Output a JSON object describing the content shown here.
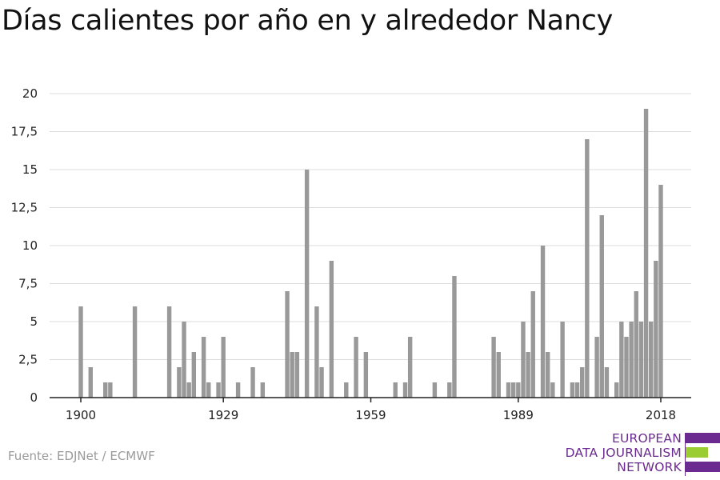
{
  "title": "Días calientes por año en y alrededor Nancy",
  "source": "Fuente: EDJNet / ECMWF",
  "logo": {
    "lines": [
      "EUROPEAN",
      "DATA JOURNALISM",
      "NETWORK"
    ],
    "colors": {
      "purple": "#6b2a8f",
      "green": "#9acd32"
    }
  },
  "colors": {
    "bar": "#999999",
    "grid": "#dddddd",
    "axis": "#222222",
    "text": "#222222"
  },
  "chart_data": {
    "type": "bar",
    "title": "Días calientes por año en y alrededor Nancy",
    "xlabel": "",
    "ylabel": "",
    "ylim": [
      0,
      20
    ],
    "grid": true,
    "y_ticks": [
      0,
      2.5,
      5,
      7.5,
      10,
      12.5,
      15,
      17.5,
      20
    ],
    "y_tick_labels": [
      "0",
      "2,5",
      "5",
      "7,5",
      "10",
      "12,5",
      "15",
      "17,5",
      "20"
    ],
    "x_ticks": [
      1900,
      1929,
      1959,
      1989,
      2018
    ],
    "x_tick_labels": [
      "1900",
      "1929",
      "1959",
      "1989",
      "2018"
    ],
    "x_range": [
      1900,
      2018
    ],
    "x": [
      1900,
      1901,
      1902,
      1903,
      1904,
      1905,
      1906,
      1907,
      1908,
      1909,
      1910,
      1911,
      1912,
      1913,
      1914,
      1915,
      1916,
      1917,
      1918,
      1919,
      1920,
      1921,
      1922,
      1923,
      1924,
      1925,
      1926,
      1927,
      1928,
      1929,
      1930,
      1931,
      1932,
      1933,
      1934,
      1935,
      1936,
      1937,
      1938,
      1939,
      1940,
      1941,
      1942,
      1943,
      1944,
      1945,
      1946,
      1947,
      1948,
      1949,
      1950,
      1951,
      1952,
      1953,
      1954,
      1955,
      1956,
      1957,
      1958,
      1959,
      1960,
      1961,
      1962,
      1963,
      1964,
      1965,
      1966,
      1967,
      1968,
      1969,
      1970,
      1971,
      1972,
      1973,
      1974,
      1975,
      1976,
      1977,
      1978,
      1979,
      1980,
      1981,
      1982,
      1983,
      1984,
      1985,
      1986,
      1987,
      1988,
      1989,
      1990,
      1991,
      1992,
      1993,
      1994,
      1995,
      1996,
      1997,
      1998,
      1999,
      2000,
      2001,
      2002,
      2003,
      2004,
      2005,
      2006,
      2007,
      2008,
      2009,
      2010,
      2011,
      2012,
      2013,
      2014,
      2015,
      2016,
      2017,
      2018
    ],
    "values": [
      6,
      0,
      2,
      0,
      0,
      1,
      1,
      0,
      0,
      0,
      0,
      6,
      0,
      0,
      0,
      0,
      0,
      0,
      6,
      0,
      2,
      5,
      1,
      3,
      0,
      4,
      1,
      0,
      1,
      4,
      0,
      0,
      1,
      0,
      0,
      2,
      0,
      1,
      0,
      0,
      0,
      0,
      7,
      3,
      3,
      0,
      15,
      0,
      6,
      2,
      0,
      9,
      0,
      0,
      1,
      0,
      4,
      0,
      3,
      0,
      0,
      0,
      0,
      0,
      1,
      0,
      1,
      4,
      0,
      0,
      0,
      0,
      1,
      0,
      0,
      1,
      8,
      0,
      0,
      0,
      0,
      0,
      0,
      0,
      4,
      3,
      0,
      1,
      1,
      1,
      5,
      3,
      7,
      0,
      10,
      3,
      1,
      0,
      5,
      0,
      1,
      1,
      2,
      17,
      0,
      4,
      12,
      2,
      0,
      1,
      5,
      4,
      5,
      7,
      5,
      19,
      5,
      9,
      14
    ]
  }
}
